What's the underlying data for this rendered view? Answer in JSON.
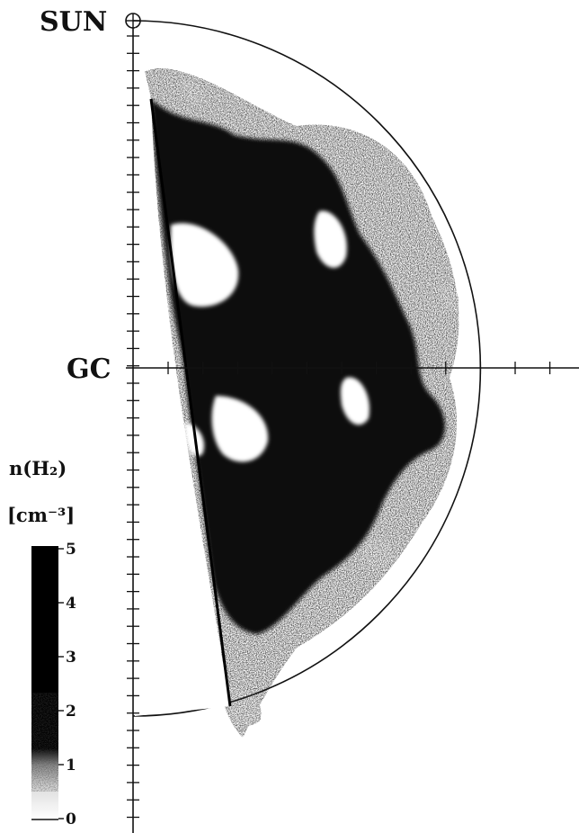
{
  "labels": {
    "sun": "SUN",
    "galactic_center": "GC",
    "colorbar_quantity": "n(H₂)",
    "colorbar_unit": "[cm⁻³]"
  },
  "colorbar": {
    "ticks": [
      "5",
      "4",
      "3",
      "2",
      "1",
      "0"
    ],
    "colors": {
      "low": "#ffffff",
      "high": "#000000"
    }
  },
  "map": {
    "gas_color": "#0a0a0a",
    "line_color": "#111111"
  }
}
